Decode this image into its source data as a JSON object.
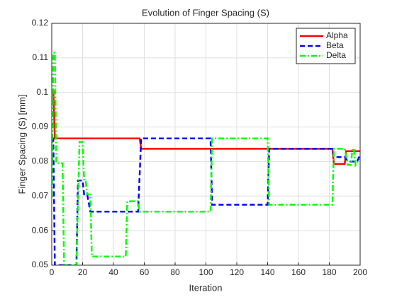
{
  "chart_data": {
    "type": "line",
    "title": "Evolution of Finger Spacing (S)",
    "xlabel": "Iteration",
    "ylabel": "Finger Spacing (S) [mm]",
    "xlim": [
      0,
      200
    ],
    "xticks": [
      0,
      20,
      40,
      60,
      80,
      100,
      120,
      140,
      160,
      180,
      200
    ],
    "ylim": [
      0.05,
      0.12
    ],
    "yticks": [
      0.05,
      0.06,
      0.07,
      0.08,
      0.09,
      0.1,
      0.11,
      0.12
    ],
    "grid": true,
    "legend": "top-right",
    "series": [
      {
        "name": "Alpha",
        "color": "#ff0000",
        "line_style": "solid",
        "x": [
          1,
          2,
          57,
          58,
          182,
          183,
          190,
          191,
          200
        ],
        "values": [
          0.1008,
          0.0867,
          0.0867,
          0.0837,
          0.0837,
          0.0793,
          0.0793,
          0.083,
          0.083
        ]
      },
      {
        "name": "Beta",
        "color": "#0000ff",
        "line_style": "dashed",
        "x": [
          0,
          1,
          2,
          16,
          17,
          20,
          21,
          23,
          25,
          56,
          58,
          103,
          104,
          140,
          141,
          182,
          183,
          190,
          192,
          198,
          200
        ],
        "values": [
          0.0867,
          0.0867,
          0.05,
          0.05,
          0.0745,
          0.0745,
          0.0705,
          0.0705,
          0.0655,
          0.0655,
          0.0867,
          0.0867,
          0.0675,
          0.0675,
          0.0837,
          0.0837,
          0.0813,
          0.0813,
          0.08,
          0.08,
          0.082
        ]
      },
      {
        "name": "Delta",
        "color": "#00ff00",
        "line_style": "dashdot",
        "x": [
          0,
          1,
          2,
          3,
          4,
          7,
          8,
          16,
          18,
          20,
          21,
          22,
          23,
          25,
          26,
          48,
          49,
          56,
          57,
          103,
          104,
          140,
          141,
          182,
          183,
          190,
          192,
          194,
          195,
          196,
          197,
          200
        ],
        "values": [
          0.07,
          0.1115,
          0.1115,
          0.0795,
          0.0795,
          0.0795,
          0.05,
          0.05,
          0.0857,
          0.0857,
          0.0745,
          0.0745,
          0.0705,
          0.0705,
          0.0525,
          0.0525,
          0.0685,
          0.0685,
          0.0655,
          0.0655,
          0.0867,
          0.0867,
          0.0675,
          0.0675,
          0.0837,
          0.0837,
          0.079,
          0.079,
          0.0837,
          0.0837,
          0.079,
          0.081
        ]
      }
    ]
  }
}
